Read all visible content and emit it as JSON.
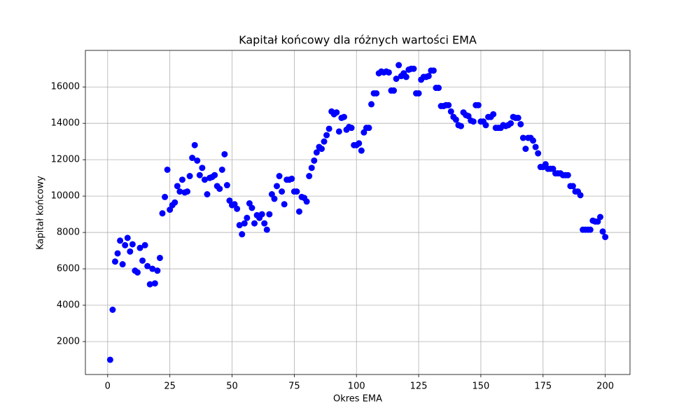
{
  "chart_data": {
    "type": "scatter",
    "title": "Kapitał końcowy dla różnych wartości EMA",
    "x_label": "Okres EMA",
    "y_label": "Kapitał końcowy",
    "grid": true,
    "xlim": [
      -8.95,
      209.95
    ],
    "ylim": [
      190,
      18010
    ],
    "xticks": [
      0,
      25,
      50,
      75,
      100,
      125,
      150,
      175,
      200
    ],
    "yticks": [
      2000,
      4000,
      6000,
      8000,
      10000,
      12000,
      14000,
      16000
    ],
    "series": [
      {
        "color": "#0000ff",
        "x": [
          1,
          2,
          3,
          4,
          5,
          6,
          7,
          8,
          9,
          10,
          11,
          12,
          13,
          14,
          15,
          16,
          17,
          18,
          19,
          20,
          21,
          22,
          23,
          24,
          25,
          26,
          27,
          28,
          29,
          30,
          31,
          32,
          33,
          34,
          35,
          36,
          37,
          38,
          39,
          40,
          41,
          42,
          43,
          44,
          45,
          46,
          47,
          48,
          49,
          50,
          51,
          52,
          53,
          54,
          55,
          56,
          57,
          58,
          59,
          60,
          61,
          62,
          63,
          64,
          65,
          66,
          67,
          68,
          69,
          70,
          71,
          72,
          73,
          74,
          75,
          76,
          77,
          78,
          79,
          80,
          81,
          82,
          83,
          84,
          85,
          86,
          87,
          88,
          89,
          90,
          91,
          92,
          93,
          94,
          95,
          96,
          97,
          98,
          99,
          100,
          101,
          102,
          103,
          104,
          105,
          106,
          107,
          108,
          109,
          110,
          111,
          112,
          113,
          114,
          115,
          116,
          117,
          118,
          119,
          120,
          121,
          122,
          123,
          124,
          125,
          126,
          127,
          128,
          129,
          130,
          131,
          132,
          133,
          134,
          135,
          136,
          137,
          138,
          139,
          140,
          141,
          142,
          143,
          144,
          145,
          146,
          147,
          148,
          149,
          150,
          151,
          152,
          153,
          154,
          155,
          156,
          157,
          158,
          159,
          160,
          161,
          162,
          163,
          164,
          165,
          166,
          167,
          168,
          169,
          170,
          171,
          172,
          173,
          174,
          175,
          176,
          177,
          178,
          179,
          180,
          181,
          182,
          183,
          184,
          185,
          186,
          187,
          188,
          189,
          190,
          191,
          192,
          193,
          194,
          195,
          196,
          197,
          198,
          199,
          200
        ],
        "values": [
          1000,
          3750,
          6400,
          6850,
          7550,
          6250,
          7300,
          7700,
          6950,
          7350,
          5900,
          5800,
          7150,
          6450,
          7300,
          6150,
          5150,
          6000,
          5200,
          5900,
          6600,
          9050,
          9950,
          11450,
          9250,
          9500,
          9650,
          10550,
          10250,
          10900,
          10200,
          10250,
          11100,
          12100,
          12800,
          11950,
          11150,
          11550,
          10900,
          10100,
          11000,
          11050,
          11150,
          10550,
          10400,
          11450,
          12300,
          10600,
          9750,
          9500,
          9550,
          9300,
          8400,
          7900,
          8500,
          8800,
          9600,
          9350,
          8500,
          8950,
          8800,
          9000,
          8500,
          8150,
          9000,
          10100,
          9850,
          10550,
          11100,
          10250,
          9550,
          10900,
          10900,
          10950,
          10250,
          10250,
          9150,
          9950,
          9900,
          9700,
          11100,
          11550,
          11950,
          12400,
          12700,
          12600,
          13000,
          13350,
          13700,
          14650,
          14500,
          14600,
          13550,
          14300,
          14350,
          13650,
          13800,
          13750,
          12800,
          12800,
          12900,
          12500,
          13500,
          13750,
          13750,
          15050,
          15650,
          15650,
          16750,
          16850,
          16800,
          16850,
          16800,
          15800,
          15800,
          16450,
          17200,
          16600,
          16750,
          16550,
          16950,
          17000,
          17000,
          15650,
          15650,
          16400,
          16550,
          16550,
          16600,
          16900,
          16900,
          15950,
          15950,
          14950,
          14950,
          15000,
          15000,
          14650,
          14350,
          14200,
          13900,
          13850,
          14600,
          14450,
          14400,
          14150,
          14100,
          15000,
          15000,
          14100,
          14100,
          13900,
          14350,
          14350,
          14500,
          13750,
          13750,
          13750,
          13900,
          13850,
          13900,
          14000,
          14350,
          14300,
          14300,
          13950,
          13200,
          12600,
          13200,
          13200,
          13050,
          12700,
          12350,
          11600,
          11600,
          11750,
          11500,
          11500,
          11500,
          11250,
          11250,
          11250,
          11150,
          11150,
          11150,
          10550,
          10550,
          10250,
          10250,
          10050,
          8150,
          8150,
          8150,
          8150,
          8650,
          8600,
          8600,
          8850,
          8050,
          7750
        ]
      }
    ]
  }
}
